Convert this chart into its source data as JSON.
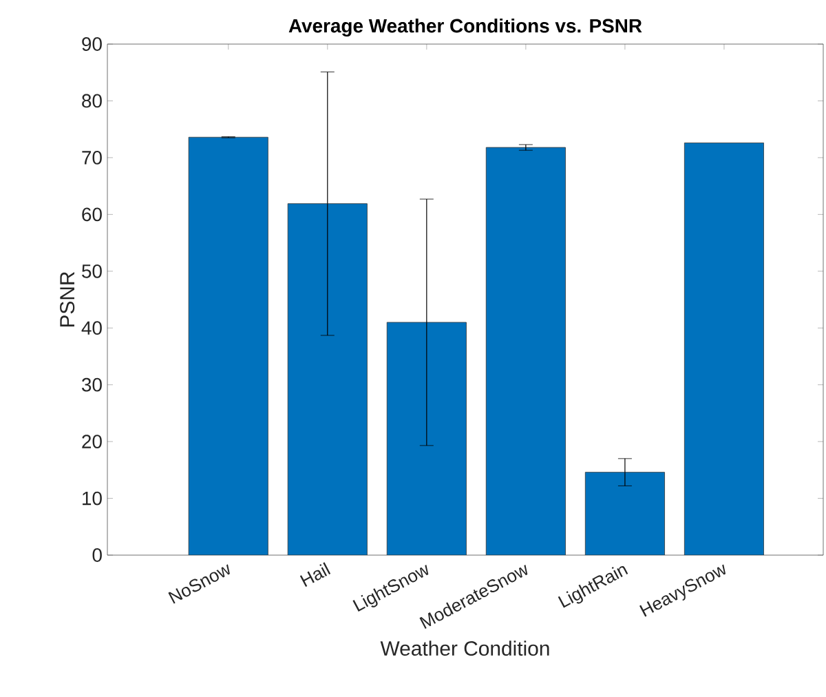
{
  "chart_data": {
    "type": "bar",
    "title": "Average Weather Conditions vs. PSNR",
    "xlabel": "Weather Condition",
    "ylabel": "PSNR",
    "categories": [
      "NoSnow",
      "Hail",
      "LightSnow",
      "ModerateSnow",
      "LightRain",
      "HeavySnow"
    ],
    "values": [
      73.6,
      61.9,
      41.0,
      71.8,
      14.6,
      72.6
    ],
    "errors": [
      0.1,
      23.2,
      21.7,
      0.5,
      2.4,
      null
    ],
    "color": "#0072bd",
    "ylim": [
      0,
      90
    ],
    "yticks": [
      0,
      10,
      20,
      30,
      40,
      50,
      60,
      70,
      80,
      90
    ]
  }
}
